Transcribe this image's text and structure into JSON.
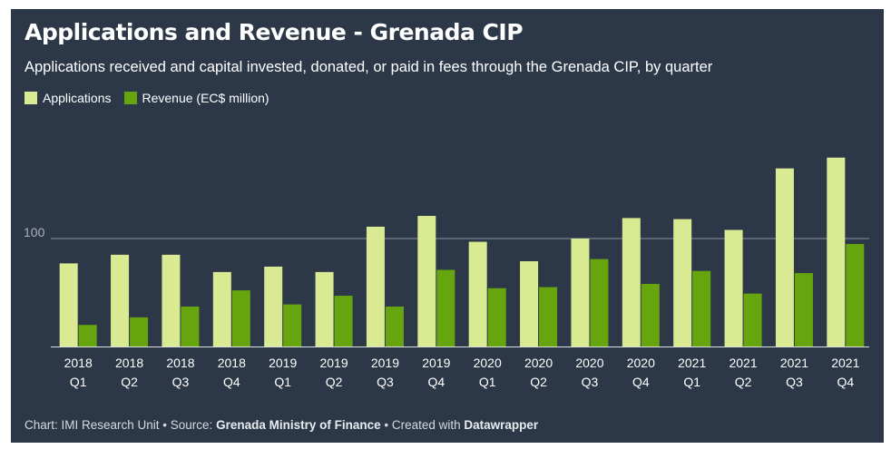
{
  "title": "Applications and Revenue - Grenada CIP",
  "subtitle": "Applications received and capital invested, donated, or paid in fees through the Grenada CIP, by quarter",
  "footer": {
    "prefix": "Chart: IMI Research Unit • Source: ",
    "source": "Grenada Ministry of Finance",
    "middle": " • Created with ",
    "tool": "Datawrapper"
  },
  "colors": {
    "background": "#2c3848",
    "applications": "#d9ea92",
    "revenue": "#67a50f",
    "grid": "#8a929c"
  },
  "chart_data": {
    "type": "bar",
    "categories": [
      "2018 Q1",
      "2018 Q2",
      "2018 Q3",
      "2018 Q4",
      "2019 Q1",
      "2019 Q2",
      "2019 Q3",
      "2019 Q4",
      "2020 Q1",
      "2020 Q2",
      "2020 Q3",
      "2020 Q4",
      "2021 Q1",
      "2021 Q2",
      "2021 Q3",
      "2021 Q4"
    ],
    "category_labels": [
      [
        "2018",
        "Q1"
      ],
      [
        "2018",
        "Q2"
      ],
      [
        "2018",
        "Q3"
      ],
      [
        "2018",
        "Q4"
      ],
      [
        "2019",
        "Q1"
      ],
      [
        "2019",
        "Q2"
      ],
      [
        "2019",
        "Q3"
      ],
      [
        "2019",
        "Q4"
      ],
      [
        "2020",
        "Q1"
      ],
      [
        "2020",
        "Q2"
      ],
      [
        "2020",
        "Q3"
      ],
      [
        "2020",
        "Q4"
      ],
      [
        "2021",
        "Q1"
      ],
      [
        "2021",
        "Q2"
      ],
      [
        "2021",
        "Q3"
      ],
      [
        "2021",
        "Q4"
      ]
    ],
    "series": [
      {
        "name": "Applications",
        "values": [
          77,
          85,
          85,
          69,
          74,
          69,
          111,
          121,
          97,
          79,
          100,
          119,
          118,
          108,
          165,
          175
        ]
      },
      {
        "name": "Revenue (EC$ million)",
        "values": [
          20,
          27,
          37,
          52,
          39,
          47,
          37,
          71,
          54,
          55,
          81,
          58,
          70,
          49,
          68,
          95
        ]
      }
    ],
    "yticks": [
      100
    ],
    "ylim": [
      0,
      190
    ],
    "xlabel": "",
    "ylabel": "",
    "grid": true,
    "legend": "top-left"
  }
}
